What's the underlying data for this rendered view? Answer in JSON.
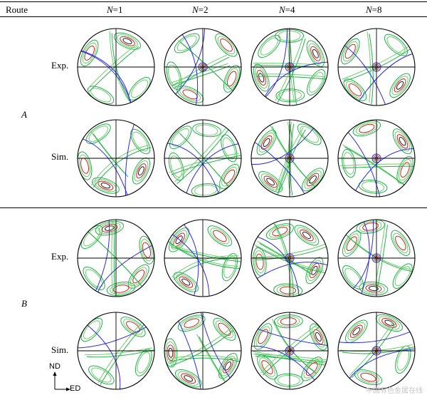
{
  "header": {
    "route_label": "Route",
    "columns": [
      {
        "var": "N",
        "value": "=1"
      },
      {
        "var": "N",
        "value": "=2"
      },
      {
        "var": "N",
        "value": "=4"
      },
      {
        "var": "N",
        "value": "=8"
      }
    ]
  },
  "routes": [
    {
      "name": "A",
      "rows": [
        "Exp.",
        "Sim."
      ]
    },
    {
      "name": "B",
      "rows": [
        "Exp.",
        "Sim."
      ]
    }
  ],
  "axes": {
    "vertical": "ND",
    "horizontal": "ED"
  },
  "watermark": "中国有色金属在线",
  "colors": {
    "circle": "#000000",
    "contours": [
      "#2a2ae0",
      "#22b04a",
      "#6ad06a",
      "#d02020",
      "#202020"
    ]
  }
}
